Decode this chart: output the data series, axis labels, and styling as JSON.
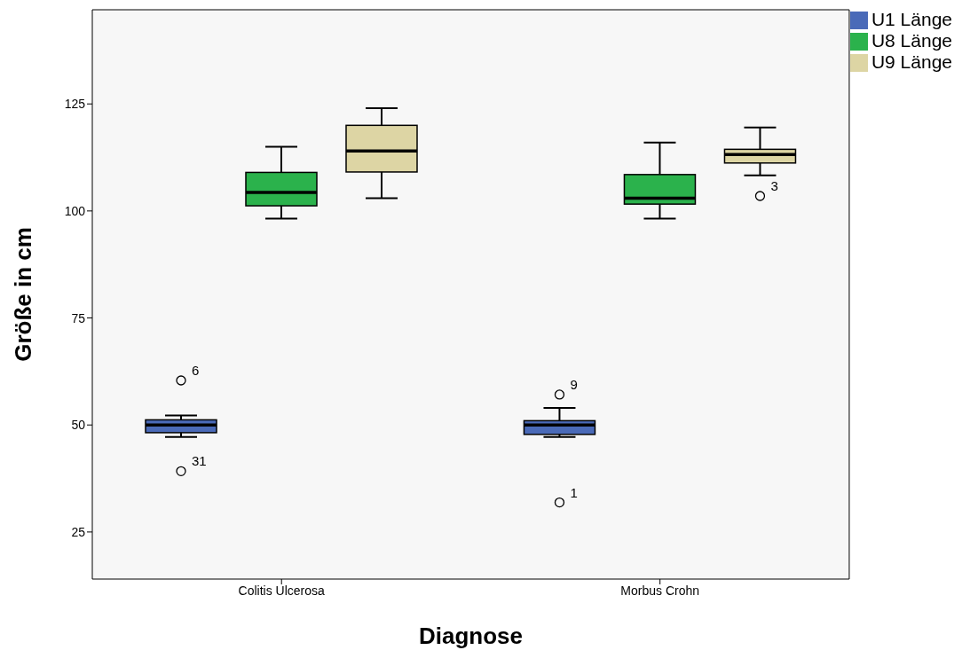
{
  "chart_data": {
    "type": "box",
    "xlabel": "Diagnose",
    "ylabel": "Größe in cm",
    "categories": [
      "Colitis Ulcerosa",
      "Morbus Crohn"
    ],
    "ylim": [
      14,
      147
    ],
    "yticks": [
      25,
      50,
      75,
      100,
      125
    ],
    "grid": false,
    "legend": "top right",
    "series": [
      {
        "name": "U1 Länge",
        "color": "#4a6ab8",
        "boxes": [
          {
            "low": 47.2,
            "q1": 48.2,
            "median": 50,
            "q3": 51.2,
            "high": 52.2,
            "outliers": [
              60.4,
              39.2
            ]
          },
          {
            "low": 47.2,
            "q1": 47.8,
            "median": 50,
            "q3": 51,
            "high": 54,
            "outliers": [
              57.1,
              31.9
            ]
          }
        ]
      },
      {
        "name": "U8 Länge",
        "color": "#2bb24c",
        "boxes": [
          {
            "low": 98.2,
            "q1": 101.2,
            "median": 104.3,
            "q3": 109,
            "high": 115
          },
          {
            "low": 98.2,
            "q1": 101.6,
            "median": 103,
            "q3": 108.5,
            "high": 116
          }
        ]
      },
      {
        "name": "U9 Länge",
        "color": "#ddd5a4",
        "boxes": [
          {
            "low": 103,
            "q1": 109.1,
            "median": 114,
            "q3": 120,
            "high": 124
          },
          {
            "low": 108.3,
            "q1": 111.2,
            "median": 113.2,
            "q3": 114.4,
            "high": 119.5,
            "outliers": [
              103.5
            ]
          }
        ]
      }
    ],
    "annotations": [
      "6",
      "31",
      "9",
      "1",
      "3"
    ]
  }
}
